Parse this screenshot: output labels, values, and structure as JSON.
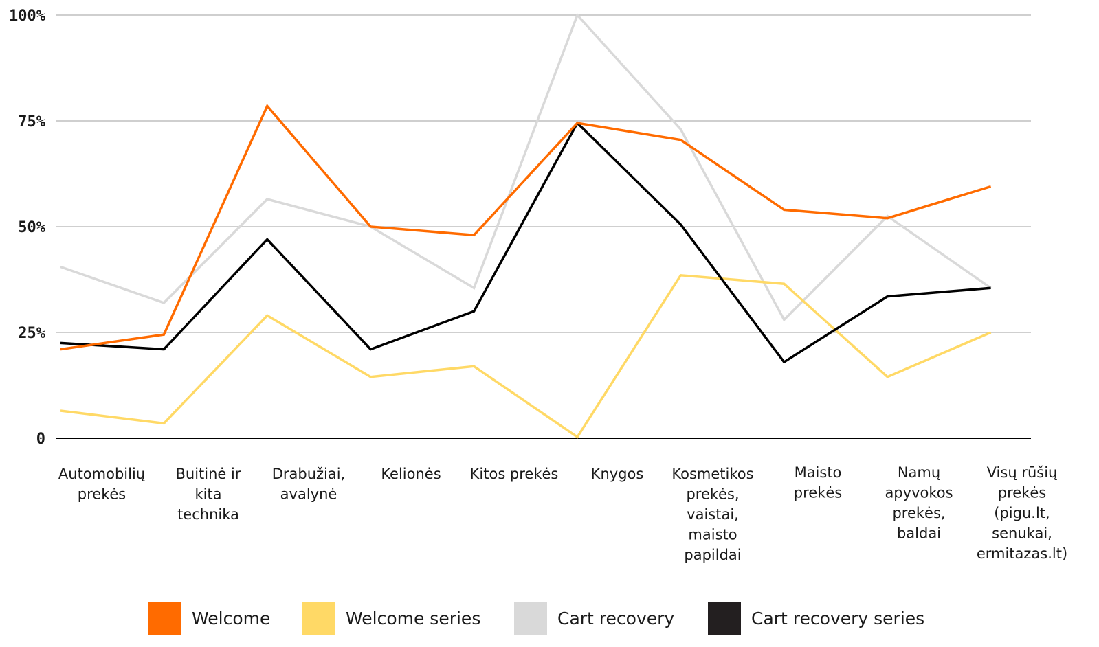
{
  "chart_data": {
    "type": "line",
    "title": "",
    "xlabel": "",
    "ylabel": "",
    "ylim": [
      0,
      100
    ],
    "yticks": [
      {
        "value": 0,
        "label": "0"
      },
      {
        "value": 25,
        "label": "25%"
      },
      {
        "value": 50,
        "label": "50%"
      },
      {
        "value": 75,
        "label": "75%"
      },
      {
        "value": 100,
        "label": "100%"
      }
    ],
    "grid": true,
    "legend_position": "bottom",
    "categories": [
      [
        "Automobilių",
        "prekės"
      ],
      [
        "Buitinė ir",
        "kita",
        "technika"
      ],
      [
        "Drabužiai,",
        "avalynė"
      ],
      [
        "Kelionės"
      ],
      [
        "Kitos prekės"
      ],
      [
        "Knygos"
      ],
      [
        "Kosmetikos",
        "prekės,",
        "vaistai,",
        "maisto",
        "papildai"
      ],
      [
        "Maisto",
        "prekės"
      ],
      [
        "Namų",
        "apyvokos",
        "prekės,",
        "baldai"
      ],
      [
        "Visų rūšių",
        "prekės",
        "(pigu.lt,",
        "senukai,",
        "ermitazas.lt)"
      ]
    ],
    "series": [
      {
        "name": "Cart recovery",
        "color": "#d9d9d9",
        "values": [
          40.5,
          32,
          56.5,
          50,
          35.5,
          100,
          73,
          28,
          52.5,
          35.5
        ]
      },
      {
        "name": "Welcome series",
        "color": "#ffd966",
        "values": [
          6.5,
          3.5,
          29,
          14.5,
          17,
          0.3,
          38.5,
          36.5,
          14.5,
          25
        ]
      },
      {
        "name": "Cart recovery series",
        "color": "#000000",
        "values": [
          22.5,
          21,
          47,
          21,
          30,
          74.5,
          50.5,
          18,
          33.5,
          35.5
        ]
      },
      {
        "name": "Welcome",
        "color": "#ff6b00",
        "values": [
          21,
          24.5,
          78.5,
          50,
          48,
          74.5,
          70.5,
          54,
          52,
          59.5
        ]
      }
    ],
    "legend": [
      {
        "name": "Welcome",
        "color": "#ff6b00"
      },
      {
        "name": "Welcome series",
        "color": "#ffd966"
      },
      {
        "name": "Cart recovery",
        "color": "#d9d9d9"
      },
      {
        "name": "Cart recovery series",
        "color": "#231f20"
      }
    ],
    "gridline_color": "#bfbfbf",
    "axis_color": "#000000"
  }
}
